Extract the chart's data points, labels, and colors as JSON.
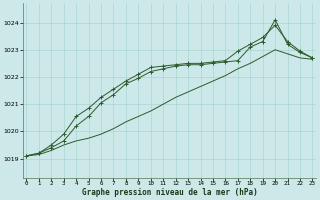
{
  "xlabel": "Graphe pression niveau de la mer (hPa)",
  "bg_color": "#cce8e8",
  "grid_color": "#aad4d4",
  "line_color": "#2d5a2d",
  "x_ticks": [
    0,
    1,
    2,
    3,
    4,
    5,
    6,
    7,
    8,
    9,
    10,
    11,
    12,
    13,
    14,
    15,
    16,
    17,
    18,
    19,
    20,
    21,
    22,
    23
  ],
  "ylim": [
    1018.3,
    1024.7
  ],
  "yticks": [
    1019,
    1020,
    1021,
    1022,
    1023,
    1024
  ],
  "ytop_partial": 1024,
  "line1_marked": [
    1019.1,
    1019.2,
    1019.4,
    1019.65,
    1020.2,
    1020.55,
    1021.05,
    1021.35,
    1021.75,
    1021.95,
    1022.2,
    1022.3,
    1022.4,
    1022.45,
    1022.45,
    1022.5,
    1022.55,
    1022.6,
    1023.1,
    1023.3,
    1024.1,
    1023.2,
    1022.9,
    1022.7
  ],
  "line2_marked": [
    1019.1,
    1019.2,
    1019.5,
    1019.9,
    1020.55,
    1020.85,
    1021.25,
    1021.55,
    1021.85,
    1022.1,
    1022.35,
    1022.4,
    1022.45,
    1022.5,
    1022.5,
    1022.55,
    1022.6,
    1022.95,
    1023.2,
    1023.45,
    1023.9,
    1023.3,
    1022.95,
    1022.7
  ],
  "line3_plain": [
    1019.1,
    1019.15,
    1019.3,
    1019.5,
    1019.65,
    1019.75,
    1019.9,
    1020.1,
    1020.35,
    1020.55,
    1020.75,
    1021.0,
    1021.25,
    1021.45,
    1021.65,
    1021.85,
    1022.05,
    1022.3,
    1022.5,
    1022.75,
    1023.0,
    1022.85,
    1022.7,
    1022.65
  ]
}
